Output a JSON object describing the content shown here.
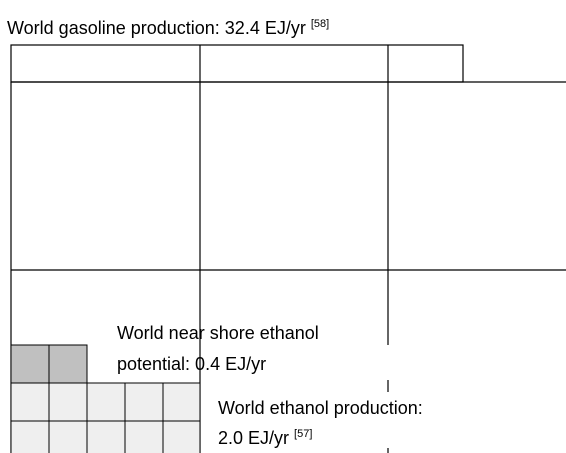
{
  "title": {
    "text": "World gasoline production: 32.4 EJ/yr",
    "ref": "[58]"
  },
  "near_shore": {
    "line1": "World near shore ethanol",
    "line2": "potential: 0.4 EJ/yr"
  },
  "ethanol": {
    "line1": "World ethanol production:",
    "line2": "2.0 EJ/yr",
    "ref": "[57]"
  }
}
